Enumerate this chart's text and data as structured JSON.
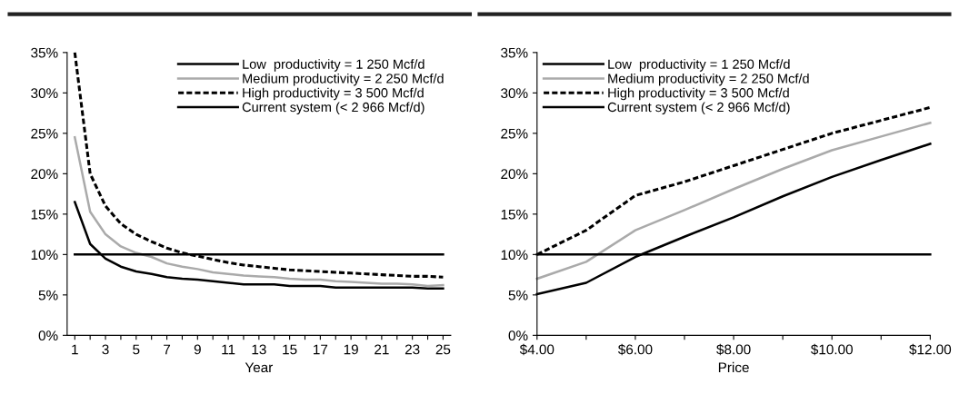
{
  "chart_data": [
    {
      "type": "line",
      "xlabel": "Year",
      "categories": [
        "1",
        null,
        "3",
        null,
        "5",
        null,
        "7",
        null,
        "9",
        null,
        "11",
        null,
        "13",
        null,
        "15",
        null,
        "17",
        null,
        "19",
        null,
        "21",
        null,
        "23",
        null,
        "25"
      ],
      "ylim": [
        0,
        35
      ],
      "yticks": [
        {
          "value": 0,
          "label": "0%"
        },
        {
          "value": 5,
          "label": "5%"
        },
        {
          "value": 10,
          "label": "10%"
        },
        {
          "value": 15,
          "label": "15%"
        },
        {
          "value": 20,
          "label": "20%"
        },
        {
          "value": 25,
          "label": "25%"
        },
        {
          "value": 30,
          "label": "30%"
        },
        {
          "value": 35,
          "label": "35%"
        }
      ],
      "legend": "top right",
      "grid": false,
      "series": [
        {
          "name": "Low  productivity = 1 250 Mcf/d",
          "color": "#000000",
          "line_style": "solid",
          "values": [
            16.5,
            11.3,
            9.5,
            8.5,
            7.9,
            7.6,
            7.2,
            7.0,
            6.9,
            6.7,
            6.5,
            6.3,
            6.3,
            6.3,
            6.1,
            6.1,
            6.1,
            5.9,
            5.9,
            5.9,
            5.9,
            5.9,
            5.9,
            5.8,
            5.8
          ]
        },
        {
          "name": "Medium productivity = 2 250 Mcf/d",
          "color": "#aaaaaa",
          "line_style": "solid",
          "values": [
            24.5,
            15.3,
            12.5,
            11.0,
            10.2,
            9.7,
            8.9,
            8.5,
            8.2,
            7.8,
            7.6,
            7.4,
            7.3,
            7.2,
            7.0,
            6.9,
            6.9,
            6.7,
            6.6,
            6.5,
            6.4,
            6.4,
            6.3,
            6.1,
            6.2
          ]
        },
        {
          "name": "High productivity = 3 500 Mcf/d",
          "color": "#000000",
          "line_style": "dashed",
          "values": [
            35,
            20,
            16,
            13.8,
            12.5,
            11.6,
            10.8,
            10.2,
            9.8,
            9.4,
            9.0,
            8.7,
            8.5,
            8.3,
            8.1,
            8.0,
            7.9,
            7.8,
            7.7,
            7.6,
            7.5,
            7.4,
            7.3,
            7.3,
            7.2
          ]
        },
        {
          "name": "Current system (< 2 966 Mcf/d)",
          "color": "#000000",
          "line_style": "solid",
          "values": [
            10,
            10,
            10,
            10,
            10,
            10,
            10,
            10,
            10,
            10,
            10,
            10,
            10,
            10,
            10,
            10,
            10,
            10,
            10,
            10,
            10,
            10,
            10,
            10,
            10
          ]
        }
      ]
    },
    {
      "type": "line",
      "xlabel": "Price",
      "x": [
        4,
        5,
        6,
        7,
        8,
        9,
        10,
        11,
        12
      ],
      "xlim": [
        4,
        12
      ],
      "xticks": [
        {
          "value": 4,
          "label": "$4.00"
        },
        {
          "value": 5,
          "label": null
        },
        {
          "value": 6,
          "label": "$6.00"
        },
        {
          "value": 7,
          "label": null
        },
        {
          "value": 8,
          "label": "$8.00"
        },
        {
          "value": 9,
          "label": null
        },
        {
          "value": 10,
          "label": "$10.00"
        },
        {
          "value": 11,
          "label": null
        },
        {
          "value": 12,
          "label": "$12.00"
        }
      ],
      "ylim": [
        0,
        35
      ],
      "yticks": [
        {
          "value": 0,
          "label": "0%"
        },
        {
          "value": 5,
          "label": "5%"
        },
        {
          "value": 10,
          "label": "10%"
        },
        {
          "value": 15,
          "label": "15%"
        },
        {
          "value": 20,
          "label": "20%"
        },
        {
          "value": 25,
          "label": "25%"
        },
        {
          "value": 30,
          "label": "30%"
        },
        {
          "value": 35,
          "label": "35%"
        }
      ],
      "legend": "top left",
      "grid": false,
      "series": [
        {
          "name": "Low  productivity = 1 250 Mcf/d",
          "color": "#000000",
          "line_style": "solid",
          "values": [
            5.1,
            6.5,
            9.7,
            12.2,
            14.6,
            17.2,
            19.6,
            21.7,
            23.7
          ]
        },
        {
          "name": "Medium productivity = 2 250 Mcf/d",
          "color": "#aaaaaa",
          "line_style": "solid",
          "values": [
            7.0,
            9.1,
            13.0,
            15.5,
            18.1,
            20.6,
            22.9,
            24.6,
            26.3
          ]
        },
        {
          "name": "High productivity = 3 500 Mcf/d",
          "color": "#000000",
          "line_style": "dashed",
          "values": [
            10.0,
            13.0,
            17.3,
            19.0,
            21.0,
            23.0,
            25.0,
            26.6,
            28.2
          ]
        },
        {
          "name": "Current system (< 2 966 Mcf/d)",
          "color": "#000000",
          "line_style": "solid",
          "values": [
            10,
            10,
            10,
            10,
            10,
            10,
            10,
            10,
            10
          ]
        }
      ]
    }
  ]
}
